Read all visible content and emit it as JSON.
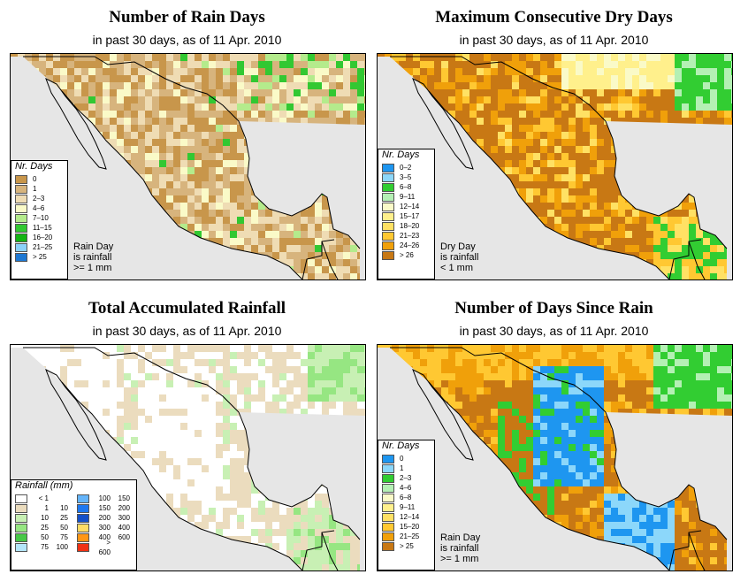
{
  "panels": [
    {
      "title": "Number of Rain Days",
      "subtitle": "in past 30 days, as of  11 Apr. 2010",
      "legend": {
        "title": "Nr. Days",
        "items": [
          {
            "label": "0",
            "color": "#c8964b"
          },
          {
            "label": "1",
            "color": "#d7b47d"
          },
          {
            "label": "2–3",
            "color": "#efdcb4"
          },
          {
            "label": "4–6",
            "color": "#fafac8"
          },
          {
            "label": "7–10",
            "color": "#b4eb8c"
          },
          {
            "label": "11–15",
            "color": "#32c832"
          },
          {
            "label": "16–20",
            "color": "#14b414"
          },
          {
            "label": "21–25",
            "color": "#8cd2fa"
          },
          {
            "label": "> 25",
            "color": "#1e78d2"
          }
        ]
      },
      "note": [
        "Rain Day",
        "is rainfall",
        ">= 1 mm"
      ]
    },
    {
      "title": "Maximum Consecutive Dry Days",
      "subtitle": "in past 30 days, as of  11 Apr. 2010",
      "legend": {
        "title": "Nr. Days",
        "items": [
          {
            "label": "0–2",
            "color": "#1e96f0"
          },
          {
            "label": "3–5",
            "color": "#8cd7fa"
          },
          {
            "label": "6–8",
            "color": "#32cd32"
          },
          {
            "label": "9–11",
            "color": "#b4f0b4"
          },
          {
            "label": "12–14",
            "color": "#fafac8"
          },
          {
            "label": "15–17",
            "color": "#fff08c"
          },
          {
            "label": "18–20",
            "color": "#ffe164"
          },
          {
            "label": "21–23",
            "color": "#ffc832"
          },
          {
            "label": "24–26",
            "color": "#f0a00a"
          },
          {
            "label": "> 26",
            "color": "#c87814"
          }
        ]
      },
      "note": [
        "Dry Day",
        "is rainfall",
        "< 1 mm"
      ]
    },
    {
      "title": "Total Accumulated Rainfall",
      "subtitle": "in past 30 days, as of  11 Apr. 2010",
      "legend": {
        "title": "Rainfall (mm)",
        "left": [
          {
            "lo": "< 1",
            "hi": "",
            "color": "#ffffff"
          },
          {
            "lo": "1",
            "hi": "10",
            "color": "#ebdcbe"
          },
          {
            "lo": "10",
            "hi": "25",
            "color": "#c8f0b4"
          },
          {
            "lo": "25",
            "hi": "50",
            "color": "#96e682"
          },
          {
            "lo": "50",
            "hi": "75",
            "color": "#46c846"
          },
          {
            "lo": "75",
            "hi": "100",
            "color": "#b4e6fa"
          }
        ],
        "right": [
          {
            "lo": "100",
            "hi": "150",
            "color": "#64b4fa"
          },
          {
            "lo": "150",
            "hi": "200",
            "color": "#1e78f0"
          },
          {
            "lo": "200",
            "hi": "300",
            "color": "#1450c8"
          },
          {
            "lo": "300",
            "hi": "400",
            "color": "#ffdc64"
          },
          {
            "lo": "400",
            "hi": "600",
            "color": "#ff9614"
          },
          {
            "lo": "> 600",
            "hi": "",
            "color": "#f03214"
          }
        ]
      }
    },
    {
      "title": "Number of Days Since Rain",
      "subtitle": "in past 30 days, as of  11 Apr. 2010",
      "legend": {
        "title": "Nr. Days",
        "items": [
          {
            "label": "0",
            "color": "#1e96f0"
          },
          {
            "label": "1",
            "color": "#8cd7fa"
          },
          {
            "label": "2–3",
            "color": "#32cd32"
          },
          {
            "label": "4–6",
            "color": "#b4f0b4"
          },
          {
            "label": "6–8",
            "color": "#fafac8"
          },
          {
            "label": "9–11",
            "color": "#fff08c"
          },
          {
            "label": "12–14",
            "color": "#ffe164"
          },
          {
            "label": "15–20",
            "color": "#ffc832"
          },
          {
            "label": "21–25",
            "color": "#f0a00a"
          },
          {
            "label": "> 25",
            "color": "#c87814"
          }
        ]
      },
      "note": [
        "Rain Day",
        "is rainfall",
        ">= 1 mm"
      ]
    }
  ],
  "colors": {
    "ocean": "#e6e6e6",
    "border": "#000000"
  }
}
